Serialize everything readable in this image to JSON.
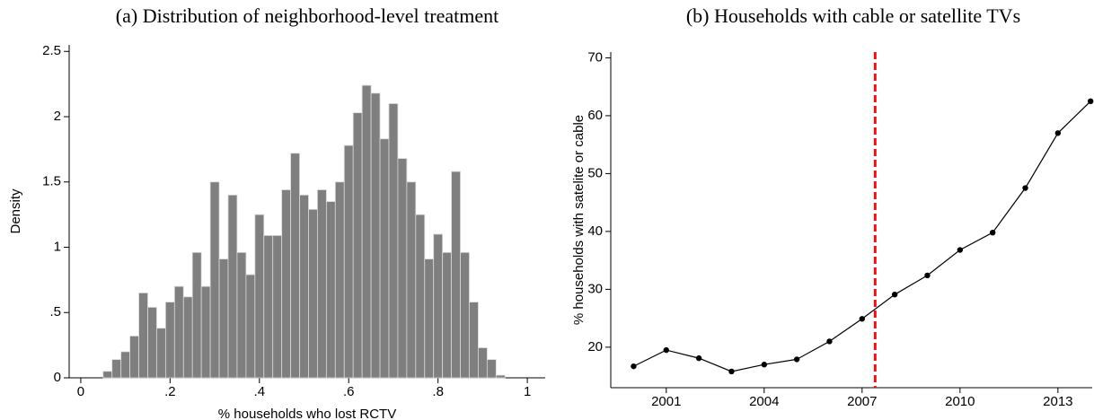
{
  "chart_data": [
    {
      "type": "histogram",
      "title": "(a) Distribution of neighborhood-level treatment",
      "x_label": "% households who lost RCTV",
      "y_label": "Density",
      "bins": [
        0.05,
        0.07,
        0.09,
        0.11,
        0.13,
        0.15,
        0.17,
        0.19,
        0.21,
        0.23,
        0.25,
        0.27,
        0.29,
        0.31,
        0.33,
        0.35,
        0.37,
        0.39,
        0.41,
        0.43,
        0.45,
        0.47,
        0.49,
        0.51,
        0.53,
        0.55,
        0.57,
        0.59,
        0.61,
        0.63,
        0.65,
        0.67,
        0.69,
        0.71,
        0.73,
        0.75,
        0.77,
        0.79,
        0.81,
        0.83,
        0.85,
        0.87,
        0.89,
        0.91,
        0.93,
        0.95
      ],
      "values": [
        0.05,
        0.14,
        0.2,
        0.32,
        0.65,
        0.54,
        0.38,
        0.58,
        0.7,
        0.62,
        0.96,
        0.7,
        1.5,
        0.91,
        1.4,
        0.96,
        0.79,
        1.25,
        1.09,
        1.09,
        1.44,
        1.72,
        1.4,
        1.29,
        1.44,
        1.35,
        1.5,
        1.78,
        2.03,
        2.24,
        2.18,
        1.83,
        2.1,
        1.68,
        1.5,
        1.25,
        0.91,
        1.1,
        0.96,
        1.58,
        0.96,
        0.58,
        0.23,
        0.14,
        0.02
      ],
      "color": "#7f7f7f",
      "xlim": [
        -0.026,
        1.04
      ],
      "ylim": [
        0,
        2.55
      ],
      "xticks": [
        0,
        {
          "value": 0.2,
          "label": ".2"
        },
        {
          "value": 0.4,
          "label": ".4"
        },
        {
          "value": 0.6,
          "label": ".6"
        },
        {
          "value": 0.8,
          "label": ".8"
        },
        1
      ],
      "yticks": [
        0,
        {
          "value": 0.5,
          "label": ".5"
        },
        1,
        1.5,
        2,
        2.5
      ]
    },
    {
      "type": "line",
      "title": "(b) Households with cable or satellite TVs",
      "y_label": "% households with satelite or cable",
      "x": [
        2000,
        2001,
        2002,
        2003,
        2004,
        2005,
        2006,
        2007,
        2008,
        2009,
        2010,
        2011,
        2012,
        2013,
        2014
      ],
      "values": [
        16.7,
        19.5,
        18.1,
        15.8,
        17,
        17.9,
        21,
        24.9,
        29.1,
        32.4,
        36.8,
        39.8,
        47.5,
        57,
        62.5
      ],
      "color": "#000000",
      "reference_x": 2007.4,
      "reference_color": "#e8141b",
      "xlim": [
        1999.3,
        2014.05
      ],
      "ylim": [
        13,
        71
      ],
      "xticks": [
        2001,
        2004,
        2007,
        2010,
        2013
      ],
      "yticks": [
        20,
        30,
        40,
        50,
        60,
        70
      ]
    }
  ]
}
